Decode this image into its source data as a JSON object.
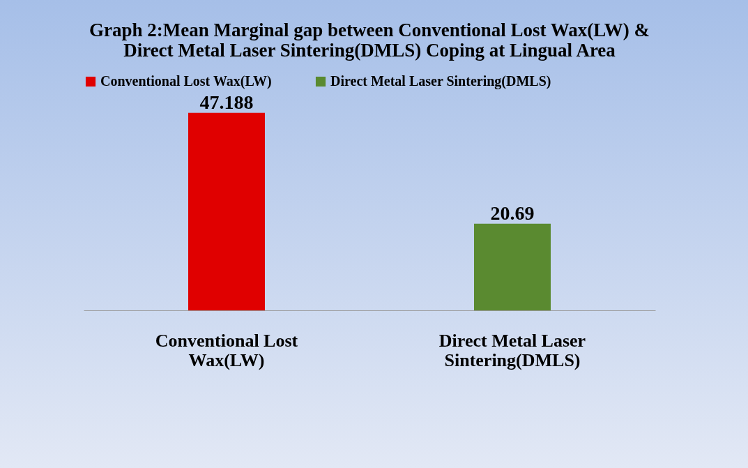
{
  "chart_data": {
    "type": "bar",
    "title": "Graph 2:Mean Marginal gap between Conventional Lost Wax(LW) & Direct Metal Laser Sintering(DMLS) Coping at Lingual Area",
    "categories": [
      "Conventional Lost Wax(LW)",
      "Direct Metal Laser Sintering(DMLS)"
    ],
    "series": [
      {
        "name": "Conventional Lost Wax(LW)",
        "color": "#e00000",
        "values": [
          47.188,
          null
        ]
      },
      {
        "name": "Direct Metal Laser Sintering(DMLS)",
        "color": "#5a8a30",
        "values": [
          null,
          20.69
        ]
      }
    ],
    "data_labels": true,
    "legend": "top",
    "grid": false
  }
}
